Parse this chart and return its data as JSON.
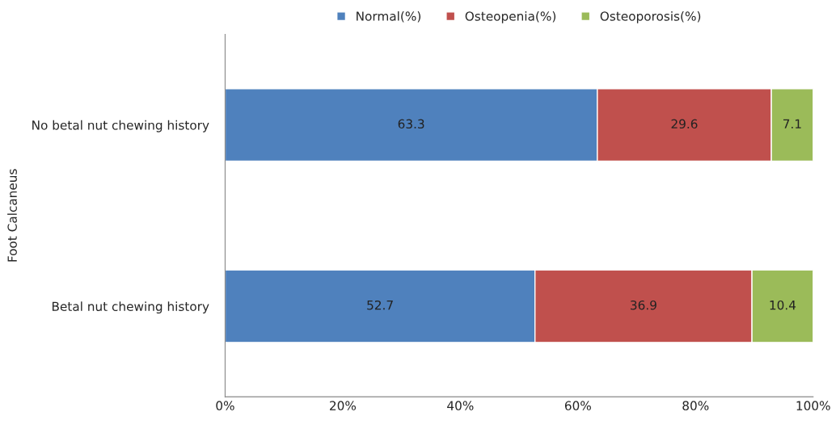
{
  "chart_data": {
    "type": "bar",
    "orientation": "horizontal",
    "stacked": true,
    "ylabel": "Foot Calcaneus",
    "categories": [
      "No betal nut chewing history",
      "Betal nut chewing history"
    ],
    "series": [
      {
        "name": "Normal(%)",
        "color": "#4f81bd",
        "values": [
          63.3,
          52.7
        ]
      },
      {
        "name": "Osteopenia(%)",
        "color": "#c0504d",
        "values": [
          29.6,
          36.9
        ]
      },
      {
        "name": "Osteoporosis(%)",
        "color": "#9bbb59",
        "values": [
          7.1,
          10.4
        ]
      }
    ],
    "xlim": [
      0,
      100
    ],
    "xticks": [
      {
        "value": 0,
        "label": "0%"
      },
      {
        "value": 20,
        "label": "20%"
      },
      {
        "value": 40,
        "label": "40%"
      },
      {
        "value": 60,
        "label": "60%"
      },
      {
        "value": 80,
        "label": "80%"
      },
      {
        "value": 100,
        "label": "100%"
      }
    ],
    "data_labels": true,
    "legend": "top",
    "grid": false
  }
}
